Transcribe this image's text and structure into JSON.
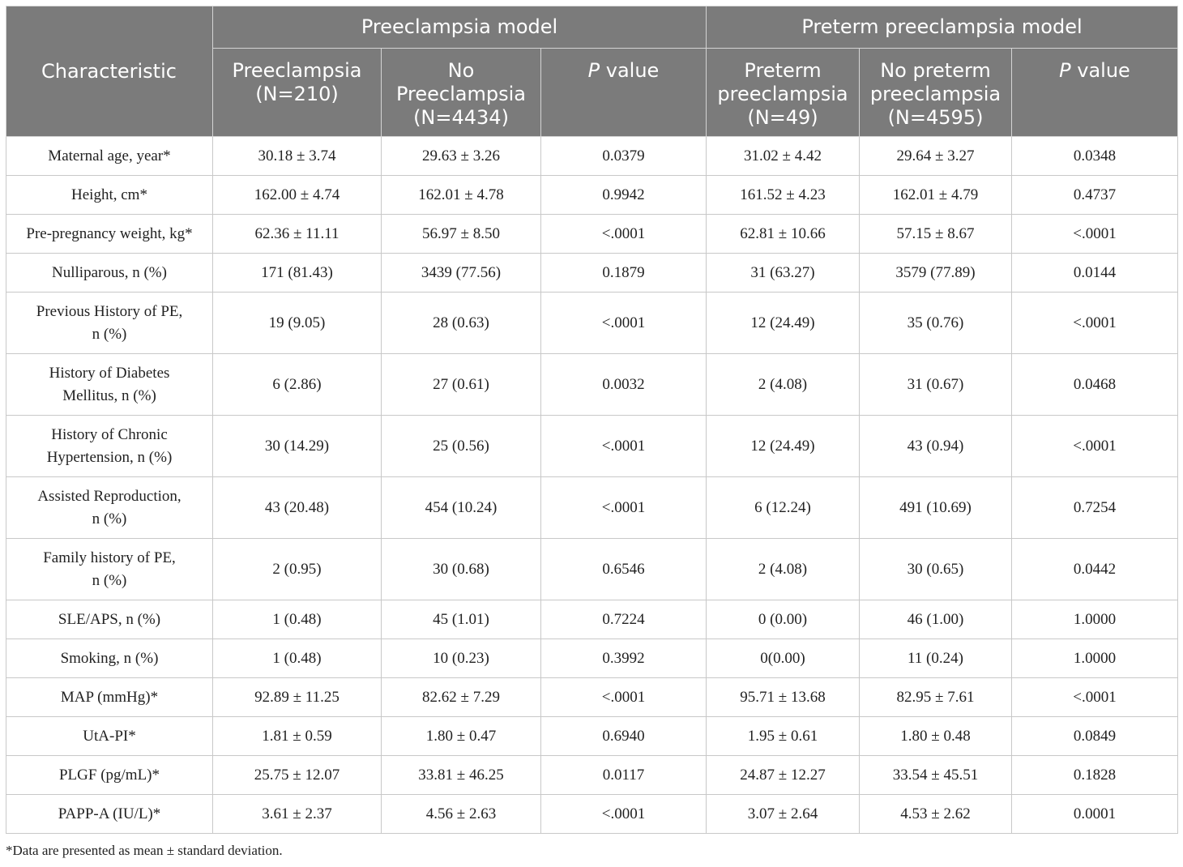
{
  "header": {
    "characteristic": "Characteristic",
    "group1": "Preeclampsia model",
    "group2": "Preterm preeclampsia model",
    "pvalue_italic": "P",
    "pvalue_rest": " value",
    "cols": [
      [
        "Preeclampsia",
        "(N=210)"
      ],
      [
        "No",
        "Preeclampsia",
        "(N=4434)"
      ],
      [
        "Preterm",
        "preeclampsia",
        "(N=49)"
      ],
      [
        "No preterm",
        "preeclampsia",
        "(N=4595)"
      ]
    ]
  },
  "rows": [
    {
      "name": [
        "Maternal age, year*"
      ],
      "v": [
        "30.18 ± 3.74",
        "29.63 ± 3.26",
        "0.0379",
        "31.02 ± 4.42",
        "29.64 ± 3.27",
        "0.0348"
      ]
    },
    {
      "name": [
        "Height, cm*"
      ],
      "v": [
        "162.00 ± 4.74",
        "162.01 ± 4.78",
        "0.9942",
        "161.52 ± 4.23",
        "162.01 ± 4.79",
        "0.4737"
      ]
    },
    {
      "name": [
        "Pre-pregnancy weight, kg*"
      ],
      "v": [
        "62.36 ± 11.11",
        "56.97 ± 8.50",
        "<.0001",
        "62.81 ± 10.66",
        "57.15 ± 8.67",
        "<.0001"
      ]
    },
    {
      "name": [
        "Nulliparous, n (%)"
      ],
      "v": [
        "171 (81.43)",
        "3439 (77.56)",
        "0.1879",
        "31 (63.27)",
        "3579 (77.89)",
        "0.0144"
      ]
    },
    {
      "name": [
        "Previous History of PE,",
        "n (%)"
      ],
      "v": [
        "19 (9.05)",
        "28 (0.63)",
        "<.0001",
        "12 (24.49)",
        "35 (0.76)",
        "<.0001"
      ]
    },
    {
      "name": [
        "History of Diabetes",
        "Mellitus, n (%)"
      ],
      "v": [
        "6 (2.86)",
        "27 (0.61)",
        "0.0032",
        "2 (4.08)",
        "31 (0.67)",
        "0.0468"
      ]
    },
    {
      "name": [
        "History of Chronic",
        "Hypertension, n (%)"
      ],
      "v": [
        "30 (14.29)",
        "25 (0.56)",
        "<.0001",
        "12 (24.49)",
        "43 (0.94)",
        "<.0001"
      ]
    },
    {
      "name": [
        "Assisted Reproduction,",
        "n (%)"
      ],
      "v": [
        "43 (20.48)",
        "454 (10.24)",
        "<.0001",
        "6 (12.24)",
        "491 (10.69)",
        "0.7254"
      ]
    },
    {
      "name": [
        "Family history of PE,",
        "n (%)"
      ],
      "v": [
        "2 (0.95)",
        "30 (0.68)",
        "0.6546",
        "2 (4.08)",
        "30 (0.65)",
        "0.0442"
      ]
    },
    {
      "name": [
        "SLE/APS, n (%)"
      ],
      "v": [
        "1 (0.48)",
        "45 (1.01)",
        "0.7224",
        "0 (0.00)",
        "46 (1.00)",
        "1.0000"
      ]
    },
    {
      "name": [
        "Smoking, n (%)"
      ],
      "v": [
        "1 (0.48)",
        "10 (0.23)",
        "0.3992",
        "0(0.00)",
        "11 (0.24)",
        "1.0000"
      ]
    },
    {
      "name": [
        "MAP (mmHg)*"
      ],
      "v": [
        "92.89 ± 11.25",
        "82.62 ± 7.29",
        "<.0001",
        "95.71 ± 13.68",
        "82.95 ± 7.61",
        "<.0001"
      ]
    },
    {
      "name": [
        "UtA-PI*"
      ],
      "v": [
        "1.81 ± 0.59",
        "1.80 ± 0.47",
        "0.6940",
        "1.95 ± 0.61",
        "1.80 ± 0.48",
        "0.0849"
      ]
    },
    {
      "name": [
        "PLGF (pg/mL)*"
      ],
      "v": [
        "25.75 ± 12.07",
        "33.81 ± 46.25",
        "0.0117",
        "24.87 ± 12.27",
        "33.54 ± 45.51",
        "0.1828"
      ]
    },
    {
      "name": [
        "PAPP-A (IU/L)*"
      ],
      "v": [
        "3.61 ± 2.37",
        "4.56 ± 2.63",
        "<.0001",
        "3.07 ± 2.64",
        "4.53 ± 2.62",
        "0.0001"
      ]
    }
  ],
  "footnote": "*Data are presented as mean ± standard deviation."
}
